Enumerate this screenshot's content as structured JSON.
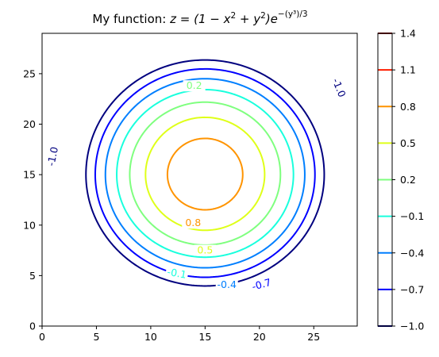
{
  "chart_data": {
    "type": "contour",
    "title": {
      "prefix": "My function: ",
      "expr_base": "z = (1 − x",
      "sup1": "2",
      "mid": " + y",
      "sup2": "2",
      "close": ")e",
      "exponent": "−(y³)/3"
    },
    "x_range": [
      0,
      29
    ],
    "y_range": [
      0,
      29
    ],
    "x_ticks": [
      "0",
      "5",
      "10",
      "15",
      "20",
      "25"
    ],
    "y_ticks": [
      "0",
      "5",
      "10",
      "15",
      "20",
      "25"
    ],
    "levels": [
      {
        "value": -1.0,
        "label": "-1.0",
        "color": "#00007f"
      },
      {
        "value": -0.7,
        "label": "-0.7",
        "color": "#0000ff"
      },
      {
        "value": -0.4,
        "label": "-0.4",
        "color": "#007fff"
      },
      {
        "value": -0.1,
        "label": "-0.1",
        "color": "#19ffdd"
      },
      {
        "value": 0.2,
        "label": "0.2",
        "color": "#7fff7f"
      },
      {
        "value": 0.5,
        "label": "0.5",
        "color": "#dfff19"
      },
      {
        "value": 0.8,
        "label": "0.8",
        "color": "#ff9400"
      },
      {
        "value": 1.1,
        "label": "1.1",
        "color": "#ff1d00"
      },
      {
        "value": 1.4,
        "label": "1.4",
        "color": "#7f0000"
      }
    ],
    "colorbar_ticks": [
      "1.4",
      "1.1",
      "0.8",
      "0.5",
      "0.2",
      "−0.1",
      "−0.4",
      "−0.7",
      "−1.0"
    ],
    "inline_labels": [
      {
        "text": "-1.0",
        "level": -1.0,
        "x": 1.0,
        "y": 16.8,
        "rot": -78
      },
      {
        "text": "-1.0",
        "level": -1.0,
        "x": 27.3,
        "y": 23.6,
        "rot": 68
      },
      {
        "text": "-0.7",
        "level": -0.7,
        "x": 20.2,
        "y": 4.1,
        "rot": -15
      },
      {
        "text": "-0.4",
        "level": -0.4,
        "x": 17.0,
        "y": 4.1,
        "rot": 0
      },
      {
        "text": "-0.1",
        "level": -0.1,
        "x": 12.4,
        "y": 5.2,
        "rot": 10
      },
      {
        "text": "0.2",
        "level": 0.2,
        "x": 14.0,
        "y": 23.8,
        "rot": 0
      },
      {
        "text": "0.5",
        "level": 0.5,
        "x": 15.0,
        "y": 7.5,
        "rot": 0
      },
      {
        "text": "0.8",
        "level": 0.8,
        "x": 13.9,
        "y": 10.2,
        "rot": 0
      }
    ],
    "grid": false,
    "legend": "colorbar-right"
  }
}
